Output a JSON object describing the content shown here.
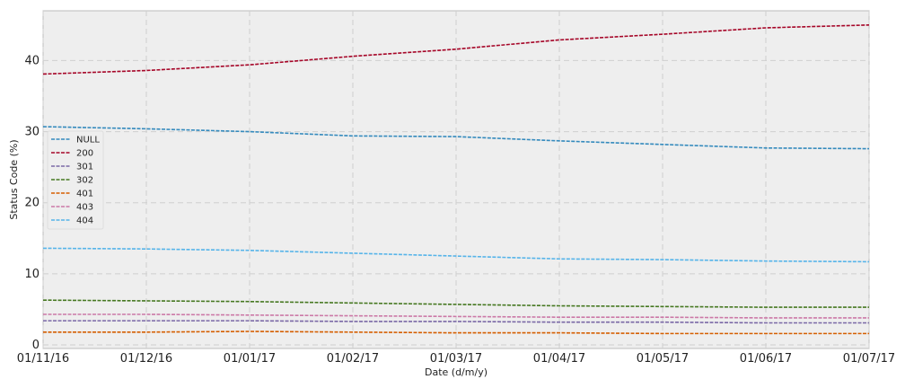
{
  "chart_data": {
    "type": "line",
    "xlabel": "Date (d/m/y)",
    "ylabel": "Status Code (%)",
    "x": [
      "01/11/16",
      "01/12/16",
      "01/01/17",
      "01/02/17",
      "01/03/17",
      "01/04/17",
      "01/05/17",
      "01/06/17",
      "01/07/17"
    ],
    "xlim": [
      0,
      8
    ],
    "ylim": [
      -0.5,
      47
    ],
    "yticks": [
      0,
      10,
      20,
      30,
      40
    ],
    "grid": true,
    "line_style": "dashed",
    "legend_position": "center-left",
    "series": [
      {
        "name": "NULL",
        "color": "#348ABD",
        "values": [
          30.7,
          30.4,
          30.0,
          29.4,
          29.3,
          28.7,
          28.2,
          27.7,
          27.6
        ]
      },
      {
        "name": "200",
        "color": "#A60628",
        "values": [
          38.1,
          38.6,
          39.4,
          40.6,
          41.6,
          42.9,
          43.7,
          44.6,
          45.0
        ]
      },
      {
        "name": "301",
        "color": "#7A68A6",
        "values": [
          3.4,
          3.4,
          3.4,
          3.3,
          3.3,
          3.2,
          3.2,
          3.1,
          3.1
        ]
      },
      {
        "name": "302",
        "color": "#467821",
        "values": [
          6.3,
          6.2,
          6.1,
          5.9,
          5.7,
          5.5,
          5.4,
          5.3,
          5.3
        ]
      },
      {
        "name": "401",
        "color": "#D55E00",
        "values": [
          1.8,
          1.8,
          1.9,
          1.8,
          1.7,
          1.7,
          1.6,
          1.6,
          1.6
        ]
      },
      {
        "name": "403",
        "color": "#CC79A7",
        "values": [
          4.3,
          4.3,
          4.2,
          4.1,
          4.0,
          3.9,
          3.9,
          3.8,
          3.8
        ]
      },
      {
        "name": "404",
        "color": "#56B4E9",
        "values": [
          13.6,
          13.5,
          13.3,
          12.9,
          12.5,
          12.1,
          12.0,
          11.8,
          11.7
        ]
      }
    ]
  }
}
